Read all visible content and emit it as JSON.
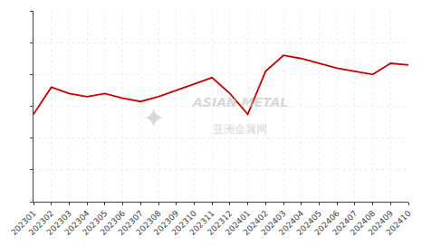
{
  "chart_data": {
    "type": "line",
    "categories": [
      "202301",
      "202302",
      "202303",
      "202304",
      "202305",
      "202306",
      "202307",
      "202308",
      "202309",
      "202310",
      "202311",
      "202312",
      "202401",
      "202402",
      "202403",
      "202404",
      "202405",
      "202406",
      "202407",
      "202408",
      "202409",
      "202410"
    ],
    "values": [
      55,
      72,
      68,
      66,
      68,
      65,
      63,
      66,
      70,
      74,
      78,
      68,
      55,
      82,
      92,
      90,
      87,
      84,
      82,
      80,
      87,
      86
    ],
    "color": "#cc0000",
    "ylim": [
      0,
      120
    ],
    "yticks": [
      0,
      20,
      40,
      60,
      80,
      100,
      120
    ],
    "grid": true,
    "tick_labels": "x",
    "annotations": [
      "ASIAN METAL",
      "亚洲金属网",
      "✦"
    ]
  }
}
